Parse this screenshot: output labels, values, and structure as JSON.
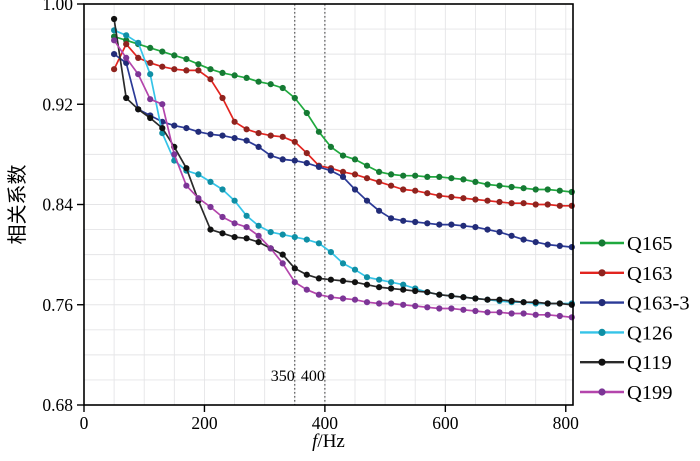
{
  "colors": {
    "background": "#ffffff",
    "plot_border": "#000000",
    "grid": "#e5e5e7",
    "reference_line": "#3a3a3a",
    "text": "#000000"
  },
  "chart_data": {
    "type": "line",
    "title": "",
    "xlabel": "f/Hz",
    "xlabel_italic": "f",
    "xlabel_rest": "/Hz",
    "ylabel": "相关系数",
    "xlim": [
      0,
      812
    ],
    "ylim": [
      0.68,
      1.0
    ],
    "x_ticks": [
      {
        "value": 0,
        "label": "0"
      },
      {
        "value": 200,
        "label": "200"
      },
      {
        "value": 400,
        "label": "400"
      },
      {
        "value": 600,
        "label": "600"
      },
      {
        "value": 800,
        "label": "800"
      }
    ],
    "y_ticks": [
      {
        "value": 0.68,
        "label": "0.68"
      },
      {
        "value": 0.76,
        "label": "0.76"
      },
      {
        "value": 0.84,
        "label": "0.84"
      },
      {
        "value": 0.92,
        "label": "0.92"
      },
      {
        "value": 1.0,
        "label": "1.00"
      }
    ],
    "grid": {
      "visible": true,
      "x_step": 50,
      "y_step": 0.02
    },
    "reference_lines": [
      {
        "x": 350,
        "label": "350"
      },
      {
        "x": 400,
        "label": "400"
      }
    ],
    "legend_position": "right-outside",
    "x": [
      50,
      70,
      90,
      110,
      130,
      150,
      170,
      190,
      210,
      230,
      250,
      270,
      290,
      310,
      330,
      350,
      370,
      390,
      410,
      430,
      450,
      470,
      490,
      510,
      530,
      550,
      570,
      590,
      610,
      630,
      650,
      670,
      690,
      710,
      730,
      750,
      770,
      790,
      810
    ],
    "series": [
      {
        "name": "Q165",
        "color": "#1fa93e",
        "marker_color": "#157a33",
        "values": [
          0.974,
          0.971,
          0.968,
          0.965,
          0.962,
          0.959,
          0.956,
          0.952,
          0.948,
          0.945,
          0.943,
          0.941,
          0.938,
          0.936,
          0.933,
          0.925,
          0.913,
          0.898,
          0.886,
          0.879,
          0.876,
          0.871,
          0.866,
          0.864,
          0.863,
          0.863,
          0.862,
          0.862,
          0.861,
          0.86,
          0.858,
          0.856,
          0.855,
          0.854,
          0.853,
          0.852,
          0.852,
          0.851,
          0.85
        ]
      },
      {
        "name": "Q163",
        "color": "#e2241f",
        "marker_color": "#8f231e",
        "values": [
          0.948,
          0.968,
          0.957,
          0.953,
          0.95,
          0.948,
          0.947,
          0.947,
          0.94,
          0.925,
          0.906,
          0.9,
          0.897,
          0.895,
          0.894,
          0.89,
          0.881,
          0.871,
          0.869,
          0.866,
          0.864,
          0.861,
          0.858,
          0.855,
          0.852,
          0.851,
          0.849,
          0.847,
          0.846,
          0.845,
          0.844,
          0.843,
          0.842,
          0.841,
          0.841,
          0.84,
          0.84,
          0.839,
          0.839
        ]
      },
      {
        "name": "Q163-3",
        "color": "#2b3a97",
        "marker_color": "#222c78",
        "values": [
          0.96,
          0.953,
          0.916,
          0.911,
          0.906,
          0.903,
          0.901,
          0.898,
          0.896,
          0.895,
          0.893,
          0.891,
          0.886,
          0.879,
          0.876,
          0.875,
          0.873,
          0.87,
          0.867,
          0.862,
          0.852,
          0.843,
          0.835,
          0.829,
          0.827,
          0.826,
          0.825,
          0.824,
          0.824,
          0.823,
          0.822,
          0.82,
          0.818,
          0.815,
          0.812,
          0.81,
          0.808,
          0.807,
          0.806
        ]
      },
      {
        "name": "Q126",
        "color": "#35c4e8",
        "marker_color": "#0f8fa5",
        "values": [
          0.979,
          0.975,
          0.969,
          0.944,
          0.897,
          0.875,
          0.867,
          0.864,
          0.858,
          0.852,
          0.843,
          0.831,
          0.823,
          0.818,
          0.816,
          0.814,
          0.812,
          0.809,
          0.802,
          0.793,
          0.788,
          0.782,
          0.78,
          0.778,
          0.776,
          0.773,
          0.77,
          0.768,
          0.767,
          0.766,
          0.765,
          0.764,
          0.763,
          0.762,
          0.762,
          0.761,
          0.761,
          0.761,
          0.761
        ]
      },
      {
        "name": "Q119",
        "color": "#2a2a2a",
        "marker_color": "#111111",
        "values": [
          0.988,
          0.925,
          0.916,
          0.909,
          0.901,
          0.886,
          0.869,
          0.843,
          0.82,
          0.817,
          0.814,
          0.813,
          0.81,
          0.805,
          0.8,
          0.789,
          0.784,
          0.781,
          0.78,
          0.779,
          0.778,
          0.776,
          0.774,
          0.773,
          0.772,
          0.771,
          0.77,
          0.768,
          0.767,
          0.766,
          0.765,
          0.764,
          0.764,
          0.763,
          0.762,
          0.762,
          0.761,
          0.761,
          0.76
        ]
      },
      {
        "name": "Q199",
        "color": "#b445ac",
        "marker_color": "#7c3596",
        "values": [
          0.971,
          0.957,
          0.944,
          0.924,
          0.92,
          0.88,
          0.855,
          0.845,
          0.838,
          0.83,
          0.825,
          0.822,
          0.815,
          0.805,
          0.793,
          0.778,
          0.772,
          0.768,
          0.766,
          0.765,
          0.764,
          0.762,
          0.761,
          0.761,
          0.76,
          0.759,
          0.758,
          0.757,
          0.757,
          0.756,
          0.755,
          0.754,
          0.754,
          0.753,
          0.753,
          0.752,
          0.752,
          0.751,
          0.75
        ]
      }
    ]
  }
}
